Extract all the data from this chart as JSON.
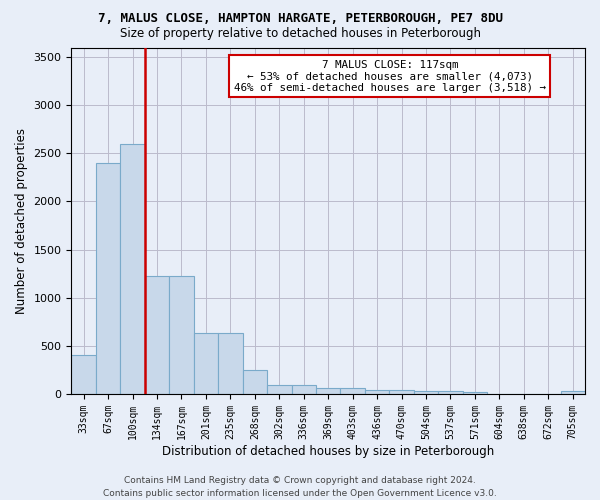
{
  "title": "7, MALUS CLOSE, HAMPTON HARGATE, PETERBOROUGH, PE7 8DU",
  "subtitle": "Size of property relative to detached houses in Peterborough",
  "xlabel": "Distribution of detached houses by size in Peterborough",
  "ylabel": "Number of detached properties",
  "categories": [
    "33sqm",
    "67sqm",
    "100sqm",
    "134sqm",
    "167sqm",
    "201sqm",
    "235sqm",
    "268sqm",
    "302sqm",
    "336sqm",
    "369sqm",
    "403sqm",
    "436sqm",
    "470sqm",
    "504sqm",
    "537sqm",
    "571sqm",
    "604sqm",
    "638sqm",
    "672sqm",
    "705sqm"
  ],
  "values": [
    400,
    2400,
    2600,
    1230,
    1230,
    630,
    630,
    245,
    90,
    90,
    60,
    60,
    40,
    40,
    35,
    35,
    25,
    0,
    0,
    0,
    35
  ],
  "bar_color": "#c8d8ea",
  "bar_edge_color": "#7aaaca",
  "vline_color": "#cc0000",
  "vline_x": 2.5,
  "annotation_text": "7 MALUS CLOSE: 117sqm\n← 53% of detached houses are smaller (4,073)\n46% of semi-detached houses are larger (3,518) →",
  "annotation_box_color": "#ffffff",
  "annotation_box_edge": "#cc0000",
  "ylim": [
    0,
    3600
  ],
  "yticks": [
    0,
    500,
    1000,
    1500,
    2000,
    2500,
    3000,
    3500
  ],
  "grid_color": "#bbbbcc",
  "bg_color": "#e8eef8",
  "footer": "Contains HM Land Registry data © Crown copyright and database right 2024.\nContains public sector information licensed under the Open Government Licence v3.0."
}
